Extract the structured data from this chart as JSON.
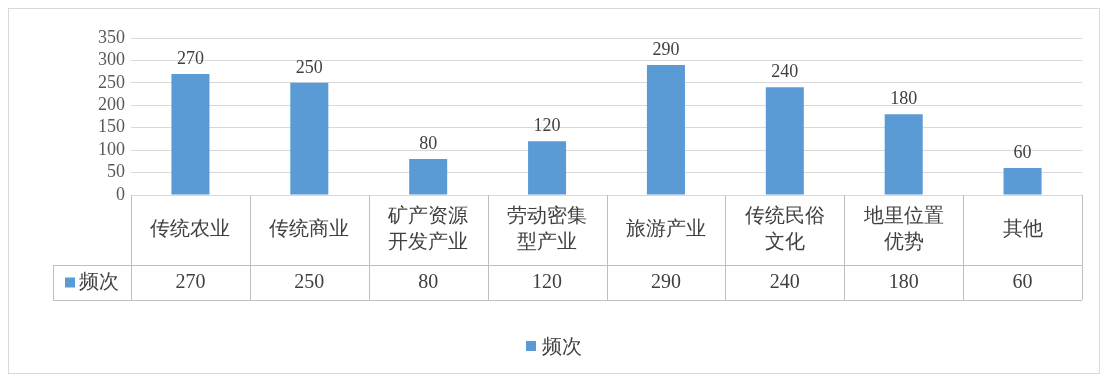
{
  "chart_data": {
    "type": "bar",
    "categories": [
      "传统农业",
      "传统商业",
      "矿产资源开发产业",
      "劳动密集型产业",
      "旅游产业",
      "传统民俗文化",
      "地里位置优势",
      "其他"
    ],
    "series": [
      {
        "name": "频次",
        "color": "#5b9bd5",
        "values": [
          270,
          250,
          80,
          120,
          290,
          240,
          180,
          60
        ],
        "value_labels": [
          "270",
          "250",
          "80",
          "120",
          "290",
          "240",
          "180",
          "60"
        ]
      }
    ],
    "ylim": [
      0,
      350
    ],
    "yticks": [
      0,
      50,
      100,
      150,
      200,
      250,
      300,
      350
    ],
    "grid": "y",
    "data_labels": true,
    "legend": "bottom"
  }
}
